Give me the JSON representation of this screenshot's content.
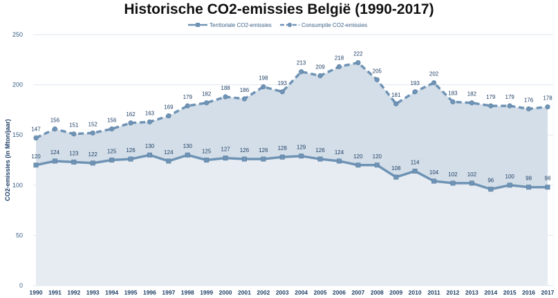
{
  "chart_data": {
    "type": "area",
    "title": "Historische CO2-emissies België (1990-2017)",
    "ylabel": "CO2-emissies (in Mton/jaar)",
    "xlabel": "",
    "ylim": [
      0,
      250
    ],
    "yticks": [
      0,
      50,
      100,
      150,
      200,
      250
    ],
    "grid": true,
    "legend_position": "top-center",
    "categories": [
      "1990",
      "1991",
      "1992",
      "1993",
      "1994",
      "1995",
      "1996",
      "1997",
      "1998",
      "1999",
      "2000",
      "2001",
      "2002",
      "2003",
      "2004",
      "2005",
      "2006",
      "2007",
      "2008",
      "2009",
      "2010",
      "2011",
      "2012",
      "2013",
      "2014",
      "2015",
      "2016",
      "2017"
    ],
    "series": [
      {
        "name": "Territoriale CO2-emissies",
        "marker": "square",
        "line_style": "solid",
        "color": "#6f93b5",
        "values": [
          120,
          124,
          123,
          122,
          125,
          126,
          130,
          124,
          130,
          125,
          127,
          126,
          126,
          128,
          129,
          126,
          124,
          120,
          120,
          108,
          114,
          104,
          102,
          102,
          96,
          100,
          98,
          98
        ]
      },
      {
        "name": "Consumptie CO2-emissies",
        "marker": "circle",
        "line_style": "dashed",
        "color": "#6f93b5",
        "values": [
          147,
          156,
          151,
          152,
          156,
          162,
          163,
          169,
          179,
          182,
          188,
          186,
          198,
          193,
          213,
          209,
          218,
          222,
          205,
          181,
          193,
          202,
          183,
          182,
          179,
          179,
          176,
          178
        ]
      }
    ],
    "colors": {
      "upper_area": "#d3dee8",
      "lower_area": "#e6ecf2",
      "grid": "#dfe6ee",
      "axis_text": "#3a5f87",
      "label_text": "#1f3f66"
    }
  }
}
